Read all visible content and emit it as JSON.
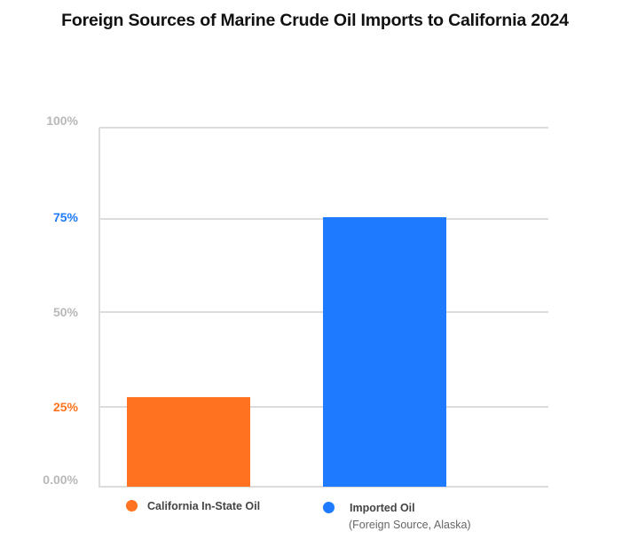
{
  "title": "Foreign Sources of Marine Crude Oil Imports to California 2024",
  "y_ticks": [
    {
      "label": "100%",
      "color": "#b8b8b8"
    },
    {
      "label": "75%",
      "color": "#1e7bff"
    },
    {
      "label": "50%",
      "color": "#b8b8b8"
    },
    {
      "label": "25%",
      "color": "#ff7320"
    },
    {
      "label": "0.00%",
      "color": "#b8b8b8"
    }
  ],
  "legend": [
    {
      "label": "California In-State Oil",
      "sublabel": "",
      "color": "#ff7320"
    },
    {
      "label": "Imported Oil",
      "sublabel": "(Foreign Source, Alaska)",
      "color": "#1e7bff"
    }
  ],
  "chart_data": {
    "type": "bar",
    "title": "Foreign Sources of Marine Crude Oil Imports to California 2024",
    "categories": [
      "California In-State Oil",
      "Imported Oil (Foreign Source, Alaska)"
    ],
    "values": [
      25,
      75
    ],
    "colors": [
      "#ff7320",
      "#1e7bff"
    ],
    "xlabel": "",
    "ylabel": "",
    "ylim": [
      0,
      100
    ],
    "y_tick_labels": [
      "0.00%",
      "25%",
      "50%",
      "75%",
      "100%"
    ],
    "grid": true,
    "legend_position": "bottom"
  }
}
